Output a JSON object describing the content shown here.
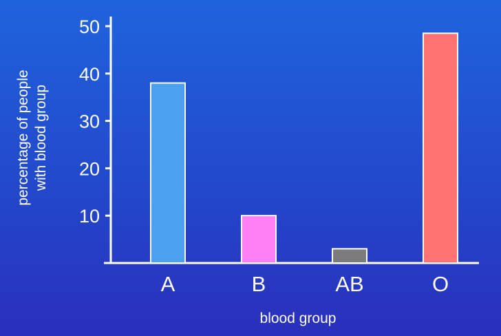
{
  "chart_data": {
    "type": "bar",
    "categories": [
      "A",
      "B",
      "AB",
      "O"
    ],
    "values": [
      38,
      10,
      3,
      48.5
    ],
    "colors": [
      "#4d9ff0",
      "#ff7ff7",
      "#7b7b7b",
      "#ff7373"
    ],
    "xlabel": "blood group",
    "ylabel_lines": [
      "percentage of people",
      "with blood group"
    ],
    "ylim": [
      0,
      50
    ],
    "yticks": [
      10,
      20,
      30,
      40,
      50
    ],
    "grid": false
  }
}
